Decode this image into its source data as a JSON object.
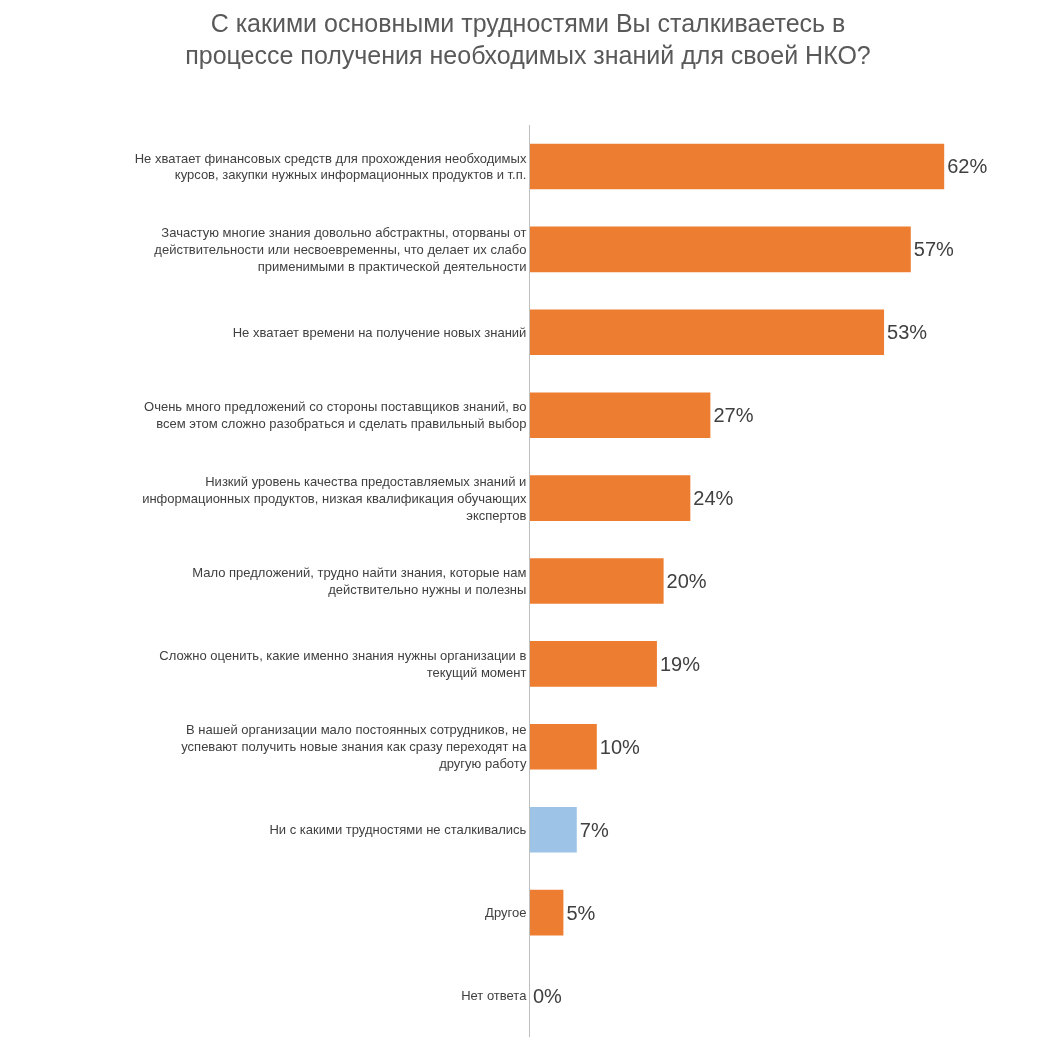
{
  "chart_data": {
    "type": "bar",
    "orientation": "horizontal",
    "title": "С какими основными трудностями Вы сталкиваетесь в процессе получения необходимых знаний для своей НКО?",
    "categories": [
      "Не хватает финансовых средств для прохождения необходимых курсов, закупки нужных информационных продуктов и т.п.",
      "Зачастую многие знания довольно абстрактны, оторваны от действительности или несвоевременны, что делает их слабо применимыми в практической деятельности",
      "Не хватает времени на получение новых знаний",
      "Очень много предложений со стороны поставщиков знаний, во всем этом сложно разобраться и сделать правильный выбор",
      "Низкий уровень качества предоставляемых знаний и информационных продуктов, низкая квалификация обучающих экспертов",
      "Мало предложений, трудно найти знания, которые нам действительно нужны и полезны",
      "Сложно оценить, какие именно знания нужны организации в текущий момент",
      "В нашей организации мало постоянных сотрудников, не успевают получить новые знания как сразу переходят на другую работу",
      "Ни с какими трудностями не сталкивались",
      "Другое",
      "Нет ответа"
    ],
    "values": [
      62,
      57,
      53,
      27,
      24,
      20,
      19,
      10,
      7,
      5,
      0
    ],
    "value_labels": [
      "62%",
      "57%",
      "53%",
      "27%",
      "24%",
      "20%",
      "19%",
      "10%",
      "7%",
      "5%",
      "0%"
    ],
    "colors": [
      "#ed7d31",
      "#ed7d31",
      "#ed7d31",
      "#ed7d31",
      "#ed7d31",
      "#ed7d31",
      "#ed7d31",
      "#ed7d31",
      "#9dc3e6",
      "#ed7d31",
      "#ed7d31"
    ],
    "tick_labels": "y"
  }
}
